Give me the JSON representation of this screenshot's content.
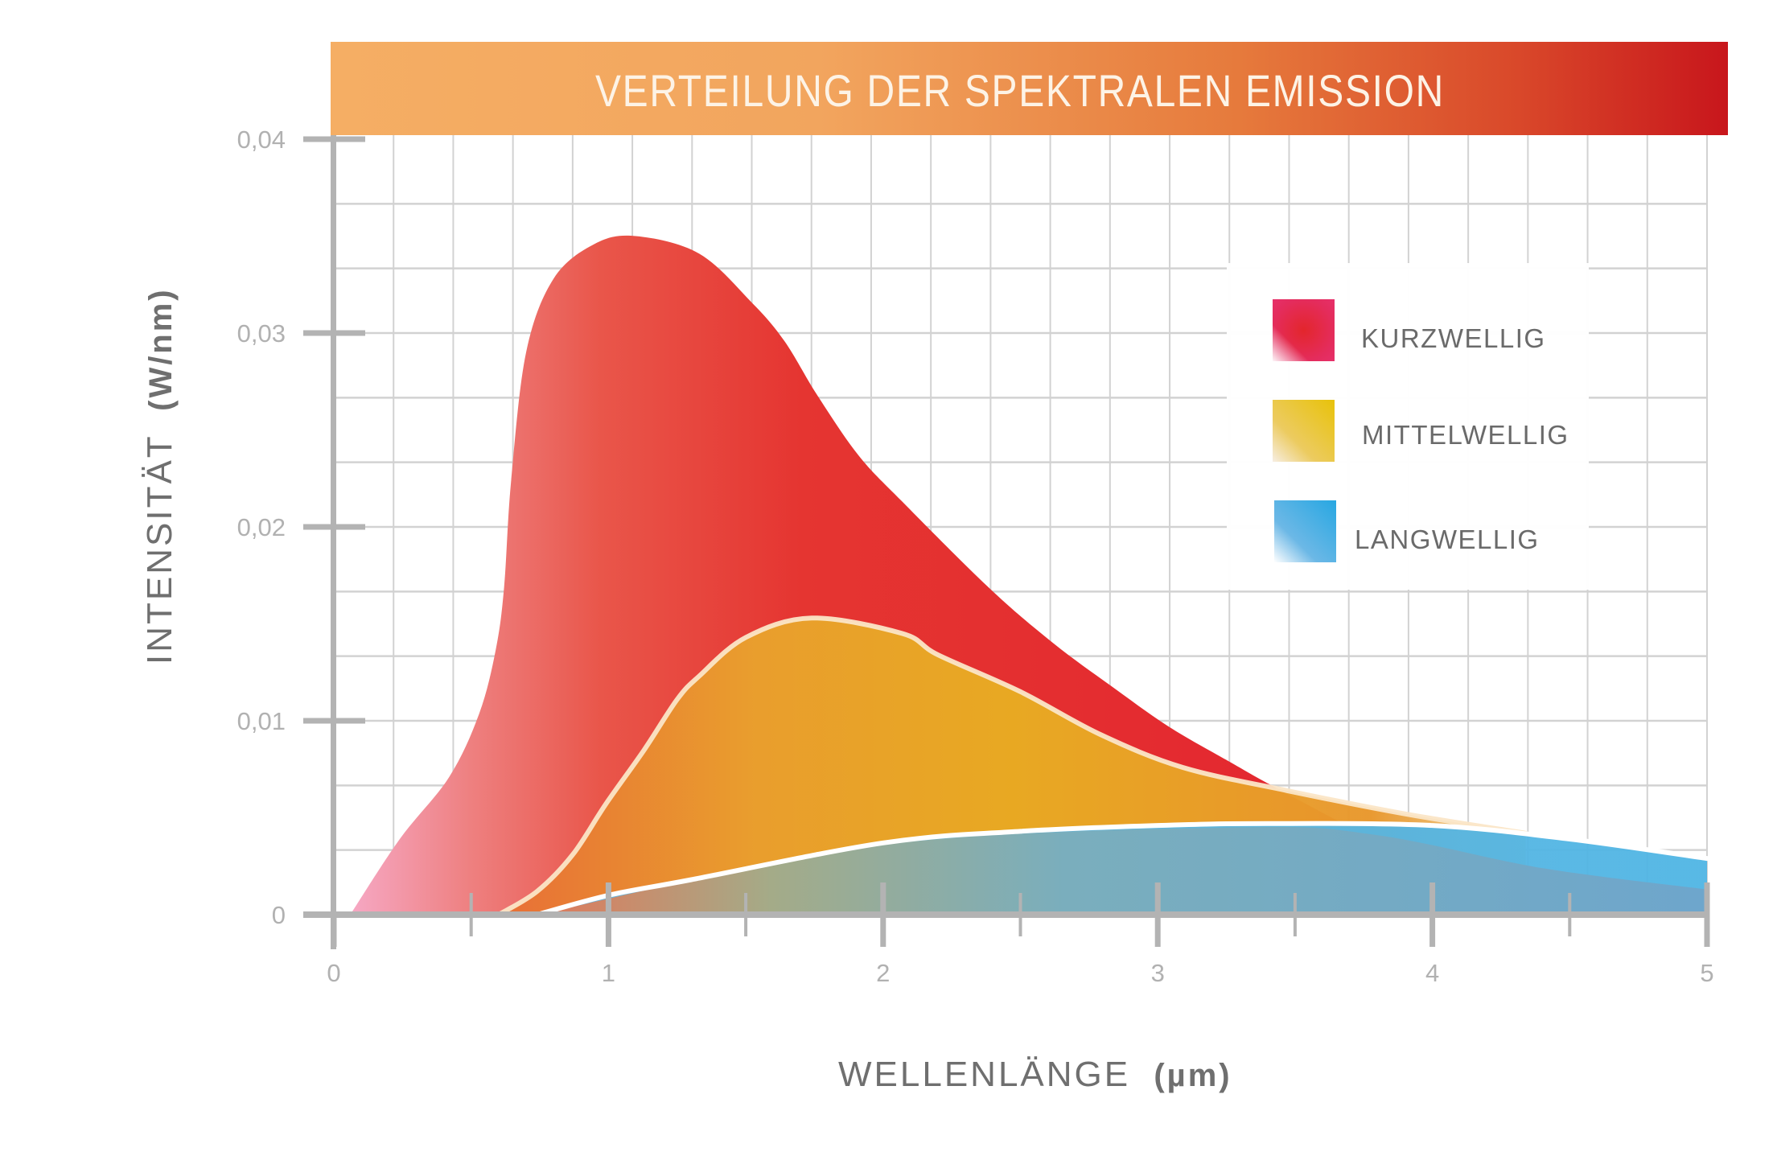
{
  "chart_data": {
    "type": "area",
    "title": "VERTEILUNG DER SPEKTRALEN EMISSION",
    "xlabel": "WELLENLÄNGE",
    "xlabel_unit": "(µm)",
    "ylabel": "INTENSITÄT",
    "ylabel_unit": "(W/nm)",
    "xlim": [
      0,
      5
    ],
    "ylim": [
      0,
      0.04
    ],
    "grid": true,
    "legend_position": "top-right",
    "x_ticks": [
      0,
      1,
      2,
      3,
      4,
      5
    ],
    "x_tick_labels": [
      "0",
      "1",
      "2",
      "3",
      "4",
      "5"
    ],
    "x_minor_ticks": [
      0.5,
      1.5,
      2.5,
      3.5,
      4.5
    ],
    "y_ticks": [
      0,
      0.01,
      0.02,
      0.03,
      0.04
    ],
    "y_tick_labels": [
      "0",
      "0,01",
      "0,02",
      "0,03",
      "0,04"
    ],
    "series": [
      {
        "name": "KURZWELLIG",
        "color": "#e5282e",
        "points": [
          [
            0.06,
            0
          ],
          [
            0.24,
            0.0039
          ],
          [
            0.42,
            0.0071
          ],
          [
            0.53,
            0.0104
          ],
          [
            0.59,
            0.0137
          ],
          [
            0.62,
            0.0169
          ],
          [
            0.645,
            0.0223
          ],
          [
            0.7,
            0.029
          ],
          [
            0.8,
            0.0328
          ],
          [
            0.95,
            0.0346
          ],
          [
            1.1,
            0.035
          ],
          [
            1.33,
            0.0341
          ],
          [
            1.52,
            0.0316
          ],
          [
            1.64,
            0.0296
          ],
          [
            1.76,
            0.0268
          ],
          [
            1.91,
            0.0237
          ],
          [
            2.07,
            0.0213
          ],
          [
            2.39,
            0.0168
          ],
          [
            2.62,
            0.014
          ],
          [
            2.83,
            0.0118
          ],
          [
            3.04,
            0.0097
          ],
          [
            3.26,
            0.0079
          ],
          [
            3.41,
            0.0067
          ],
          [
            3.7,
            0.0045
          ]
        ]
      },
      {
        "name": "MITTELWELLIG",
        "color": "#e8b21f",
        "points": [
          [
            0.6,
            0
          ],
          [
            0.74,
            0.0012
          ],
          [
            0.87,
            0.0031
          ],
          [
            0.99,
            0.0057
          ],
          [
            1.13,
            0.0085
          ],
          [
            1.25,
            0.0111
          ],
          [
            1.33,
            0.0123
          ],
          [
            1.5,
            0.0143
          ],
          [
            1.74,
            0.0153
          ],
          [
            2.07,
            0.0145
          ],
          [
            2.2,
            0.0134
          ],
          [
            2.5,
            0.0115
          ],
          [
            2.79,
            0.0093
          ],
          [
            3.09,
            0.0076
          ],
          [
            3.47,
            0.0064
          ],
          [
            3.9,
            0.0052
          ],
          [
            4.34,
            0.0042
          ]
        ]
      },
      {
        "name": "LANGWELLIG",
        "color": "#2aa8e2",
        "points": [
          [
            0.74,
            0
          ],
          [
            1.0,
            0.001
          ],
          [
            1.3,
            0.0018
          ],
          [
            2.0,
            0.0037
          ],
          [
            2.5,
            0.0043
          ],
          [
            3.0,
            0.0046
          ],
          [
            3.4,
            0.0047
          ],
          [
            4.0,
            0.0046
          ],
          [
            4.5,
            0.0039
          ],
          [
            5.0,
            0.0029
          ]
        ]
      }
    ]
  }
}
